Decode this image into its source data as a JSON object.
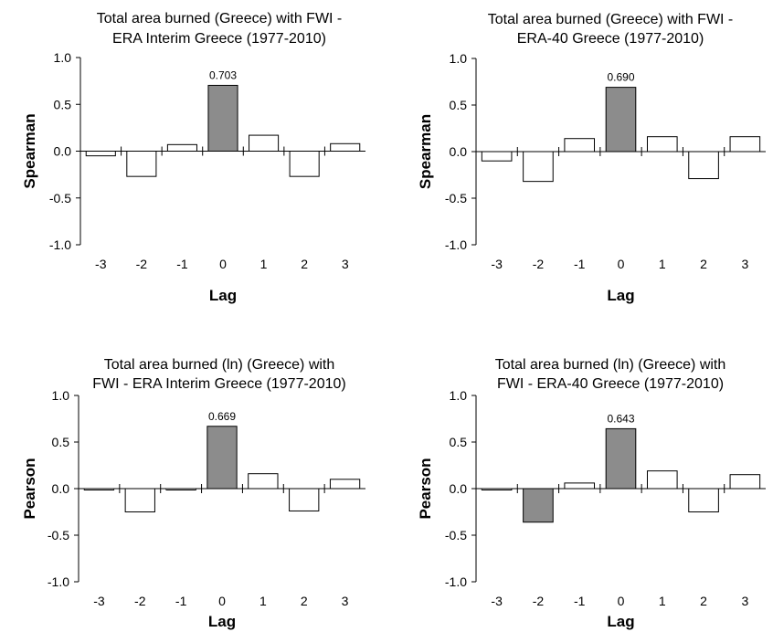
{
  "chart_data": [
    {
      "type": "bar",
      "title": [
        "Total area burned (Greece) with FWI -",
        "ERA Interim Greece (1977-2010)"
      ],
      "xlabel": "Lag",
      "ylabel": "Spearman",
      "categories": [
        "-3",
        "-2",
        "-1",
        "0",
        "1",
        "2",
        "3"
      ],
      "values": [
        -0.05,
        -0.27,
        0.07,
        0.703,
        0.17,
        -0.27,
        0.08
      ],
      "highlight": [
        false,
        false,
        false,
        true,
        false,
        false,
        false
      ],
      "data_labels": [
        "",
        "",
        "",
        "0.703",
        "",
        "",
        ""
      ],
      "ylim": [
        -1.0,
        1.0
      ],
      "yticks": [
        "1.0",
        "0.5",
        "0.0",
        "-0.5",
        "-1.0"
      ],
      "grid": false
    },
    {
      "type": "bar",
      "title": [
        "Total area burned (Greece) with FWI -",
        "ERA-40 Greece (1977-2010)"
      ],
      "xlabel": "Lag",
      "ylabel": "Spearman",
      "categories": [
        "-3",
        "-2",
        "-1",
        "0",
        "1",
        "2",
        "3"
      ],
      "values": [
        -0.1,
        -0.32,
        0.14,
        0.69,
        0.16,
        -0.29,
        0.16
      ],
      "highlight": [
        false,
        false,
        false,
        true,
        false,
        false,
        false
      ],
      "data_labels": [
        "",
        "",
        "",
        "0.690",
        "",
        "",
        ""
      ],
      "ylim": [
        -1.0,
        1.0
      ],
      "yticks": [
        "1.0",
        "0.5",
        "0.0",
        "-0.5",
        "-1.0"
      ],
      "grid": false
    },
    {
      "type": "bar",
      "title": [
        "Total area burned (ln) (Greece) with",
        "FWI - ERA Interim Greece (1977-2010)"
      ],
      "xlabel": "Lag",
      "ylabel": "Pearson",
      "categories": [
        "-3",
        "-2",
        "-1",
        "0",
        "1",
        "2",
        "3"
      ],
      "values": [
        -0.01,
        -0.25,
        -0.01,
        0.669,
        0.16,
        -0.24,
        0.1
      ],
      "highlight": [
        false,
        false,
        false,
        true,
        false,
        false,
        false
      ],
      "data_labels": [
        "",
        "",
        "",
        "0.669",
        "",
        "",
        ""
      ],
      "ylim": [
        -1.0,
        1.0
      ],
      "yticks": [
        "1.0",
        "0.5",
        "0.0",
        "-0.5",
        "-1.0"
      ],
      "grid": false
    },
    {
      "type": "bar",
      "title": [
        "Total area burned (ln) (Greece) with",
        "FWI - ERA-40 Greece (1977-2010)"
      ],
      "xlabel": "Lag",
      "ylabel": "Pearson",
      "categories": [
        "-3",
        "-2",
        "-1",
        "0",
        "1",
        "2",
        "3"
      ],
      "values": [
        -0.01,
        -0.36,
        0.06,
        0.643,
        0.19,
        -0.25,
        0.15
      ],
      "highlight": [
        false,
        true,
        false,
        true,
        false,
        false,
        false
      ],
      "data_labels": [
        "",
        "",
        "",
        "0.643",
        "",
        "",
        ""
      ],
      "ylim": [
        -1.0,
        1.0
      ],
      "yticks": [
        "1.0",
        "0.5",
        "0.0",
        "-0.5",
        "-1.0"
      ],
      "grid": false
    }
  ],
  "colors": {
    "highlight_fill": "#8c8c8c",
    "bar_fill": "#ffffff",
    "bar_stroke": "#000000",
    "axis": "#000000"
  }
}
